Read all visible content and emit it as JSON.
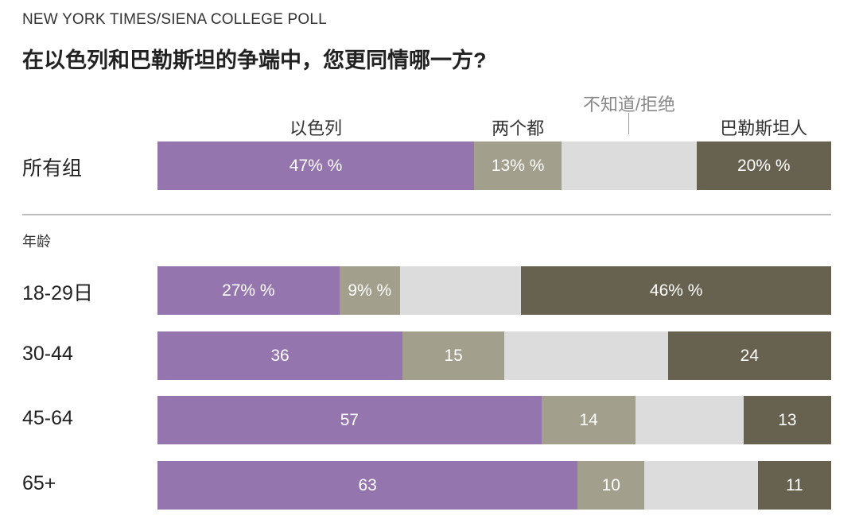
{
  "source": "NEW YORK TIMES/SIENA COLLEGE POLL",
  "title": "在以色列和巴勒斯坦的争端中，您更同情哪一方?",
  "group_label": "年龄",
  "colors": {
    "israel": "#9575ae",
    "both": "#a29f8d",
    "dk": "#dcdcdc",
    "palestinians": "#67614f"
  },
  "chart_data": {
    "type": "bar",
    "orientation": "horizontal",
    "stacked": true,
    "categories": [
      "所有组",
      "18-29日",
      "30-44",
      "45-64",
      "65+"
    ],
    "series": [
      {
        "name": "以色列",
        "values": [
          47,
          27,
          36,
          57,
          63
        ],
        "labels": [
          "47% %",
          "27% %",
          "36",
          "57",
          "63"
        ]
      },
      {
        "name": "两个都",
        "values": [
          13,
          9,
          15,
          14,
          10
        ],
        "labels": [
          "13% %",
          "9% %",
          "15",
          "14",
          "10"
        ]
      },
      {
        "name": "不知道/拒绝",
        "values": [
          20,
          18,
          24,
          16,
          17
        ],
        "labels": [
          "",
          "",
          "",
          "",
          ""
        ]
      },
      {
        "name": "巴勒斯坦人",
        "values": [
          20,
          46,
          24,
          13,
          11
        ],
        "labels": [
          "20% %",
          "46% %",
          "24",
          "13",
          "11"
        ]
      }
    ]
  }
}
